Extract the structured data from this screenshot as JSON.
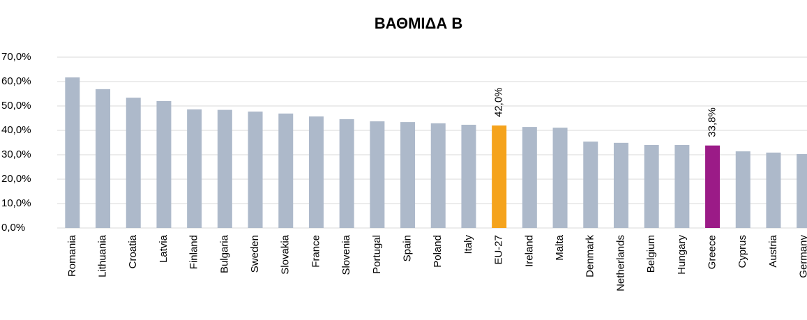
{
  "chart_data": {
    "type": "bar",
    "title": "ΒΑΘΜΙΔΑ Β",
    "categories": [
      "Romania",
      "Lithuania",
      "Croatia",
      "Latvia",
      "Finland",
      "Bulgaria",
      "Sweden",
      "Slovakia",
      "France",
      "Slovenia",
      "Portugal",
      "Spain",
      "Poland",
      "Italy",
      "EU-27",
      "Ireland",
      "Malta",
      "Denmark",
      "Netherlands",
      "Belgium",
      "Hungary",
      "Greece",
      "Cyprus",
      "Austria",
      "Germany"
    ],
    "values": [
      61.7,
      56.9,
      53.4,
      52.0,
      48.6,
      48.4,
      47.7,
      46.9,
      45.7,
      44.6,
      43.7,
      43.4,
      42.9,
      42.3,
      42.0,
      41.4,
      41.1,
      35.4,
      34.9,
      34.0,
      34.0,
      33.8,
      31.4,
      30.9,
      30.3
    ],
    "value_labels": [
      null,
      null,
      null,
      null,
      null,
      null,
      null,
      null,
      null,
      null,
      null,
      null,
      null,
      null,
      "42,0%",
      null,
      null,
      null,
      null,
      null,
      null,
      "33,8%",
      null,
      null,
      null
    ],
    "colors": [
      "#adb9ca",
      "#adb9ca",
      "#adb9ca",
      "#adb9ca",
      "#adb9ca",
      "#adb9ca",
      "#adb9ca",
      "#adb9ca",
      "#adb9ca",
      "#adb9ca",
      "#adb9ca",
      "#adb9ca",
      "#adb9ca",
      "#adb9ca",
      "#f5a31c",
      "#adb9ca",
      "#adb9ca",
      "#adb9ca",
      "#adb9ca",
      "#adb9ca",
      "#adb9ca",
      "#9b1b87",
      "#adb9ca",
      "#adb9ca",
      "#adb9ca"
    ],
    "ylim": [
      0,
      70
    ],
    "yticks": [
      {
        "value": 0,
        "label": "0,0%"
      },
      {
        "value": 10,
        "label": "10,0%"
      },
      {
        "value": 20,
        "label": "20,0%"
      },
      {
        "value": 30,
        "label": "30,0%"
      },
      {
        "value": 40,
        "label": "40,0%"
      },
      {
        "value": 50,
        "label": "50,0%"
      },
      {
        "value": 60,
        "label": "60,0%"
      },
      {
        "value": 70,
        "label": "70,0%"
      }
    ],
    "grid": true
  }
}
